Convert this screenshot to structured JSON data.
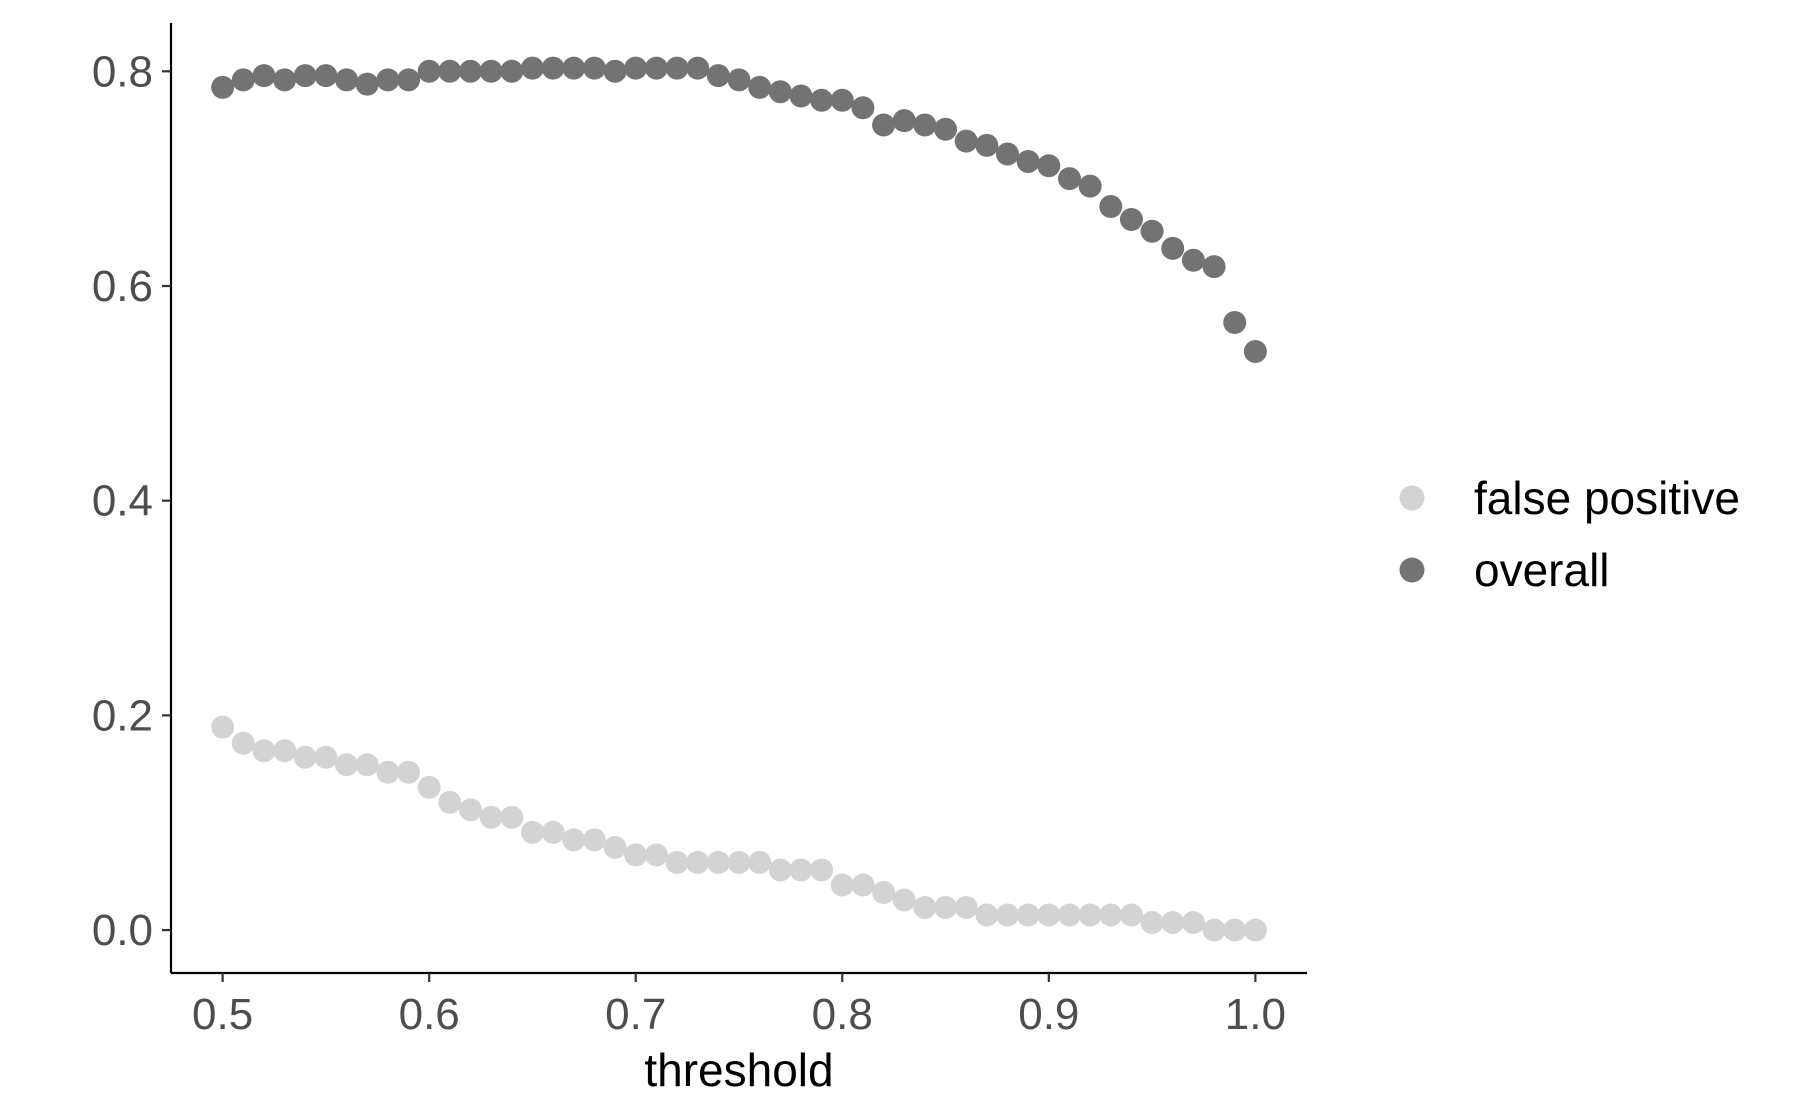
{
  "chart_data": {
    "type": "scatter",
    "title": "",
    "xlabel": "threshold",
    "ylabel": "",
    "xlim": [
      0.475,
      1.025
    ],
    "ylim": [
      -0.04,
      0.845
    ],
    "x_ticks": [
      {
        "value": 0.5,
        "label": "0.5"
      },
      {
        "value": 0.6,
        "label": "0.6"
      },
      {
        "value": 0.7,
        "label": "0.7"
      },
      {
        "value": 0.8,
        "label": "0.8"
      },
      {
        "value": 0.9,
        "label": "0.9"
      },
      {
        "value": 1.0,
        "label": "1.0"
      }
    ],
    "y_ticks": [
      {
        "value": 0.0,
        "label": "0.0"
      },
      {
        "value": 0.2,
        "label": "0.2"
      },
      {
        "value": 0.4,
        "label": "0.4"
      },
      {
        "value": 0.6,
        "label": "0.6"
      },
      {
        "value": 0.8,
        "label": "0.8"
      }
    ],
    "grid": false,
    "legend_position": "right",
    "x": [
      0.5,
      0.51,
      0.52,
      0.53,
      0.54,
      0.55,
      0.56,
      0.57,
      0.58,
      0.59,
      0.6,
      0.61,
      0.62,
      0.63,
      0.64,
      0.65,
      0.66,
      0.67,
      0.68,
      0.69,
      0.7,
      0.71,
      0.72,
      0.73,
      0.74,
      0.75,
      0.76,
      0.77,
      0.78,
      0.79,
      0.8,
      0.81,
      0.82,
      0.83,
      0.84,
      0.85,
      0.86,
      0.87,
      0.88,
      0.89,
      0.9,
      0.91,
      0.92,
      0.93,
      0.94,
      0.95,
      0.96,
      0.97,
      0.98,
      0.99,
      1.0
    ],
    "series": [
      {
        "name": "false positive",
        "color": "#d3d3d3",
        "values": [
          0.189,
          0.174,
          0.167,
          0.167,
          0.161,
          0.161,
          0.154,
          0.154,
          0.147,
          0.147,
          0.133,
          0.119,
          0.112,
          0.105,
          0.105,
          0.091,
          0.091,
          0.084,
          0.084,
          0.077,
          0.07,
          0.07,
          0.063,
          0.063,
          0.063,
          0.063,
          0.063,
          0.056,
          0.056,
          0.056,
          0.042,
          0.042,
          0.035,
          0.028,
          0.021,
          0.021,
          0.021,
          0.014,
          0.014,
          0.014,
          0.014,
          0.014,
          0.014,
          0.014,
          0.014,
          0.007,
          0.007,
          0.007,
          0.0,
          0.0,
          0.0
        ]
      },
      {
        "name": "overall",
        "color": "#737373",
        "values": [
          0.785,
          0.792,
          0.796,
          0.792,
          0.796,
          0.796,
          0.792,
          0.788,
          0.792,
          0.792,
          0.8,
          0.8,
          0.8,
          0.8,
          0.8,
          0.803,
          0.803,
          0.803,
          0.803,
          0.8,
          0.803,
          0.803,
          0.803,
          0.803,
          0.796,
          0.792,
          0.785,
          0.781,
          0.777,
          0.773,
          0.773,
          0.766,
          0.75,
          0.754,
          0.75,
          0.746,
          0.735,
          0.731,
          0.723,
          0.716,
          0.712,
          0.7,
          0.693,
          0.674,
          0.662,
          0.651,
          0.635,
          0.624,
          0.618,
          0.566,
          0.539
        ]
      }
    ]
  }
}
